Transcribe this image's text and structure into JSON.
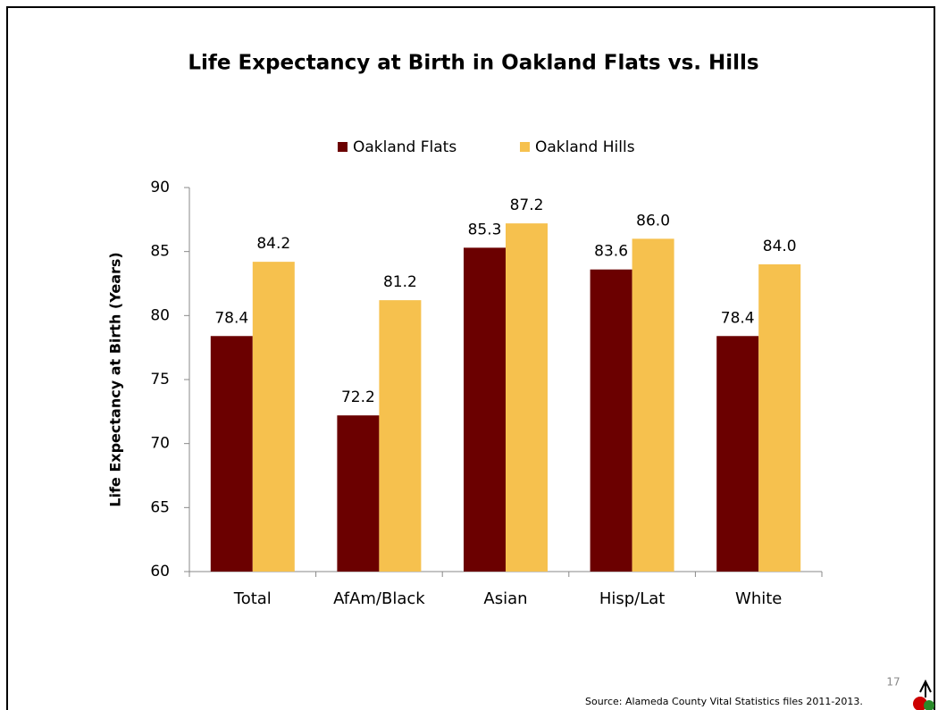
{
  "chart_data": {
    "type": "bar",
    "title": "Life Expectancy at Birth in Oakland Flats vs. Hills",
    "y_label": "Life Expectancy at Birth (Years)",
    "categories": [
      "Total",
      "AfAm/Black",
      "Asian",
      "Hisp/Lat",
      "White"
    ],
    "series": [
      {
        "name": "Oakland Flats",
        "color": "#6b0000",
        "values": [
          78.4,
          72.2,
          85.3,
          83.6,
          78.4
        ],
        "value_labels": [
          "78.4",
          "72.2",
          "85.3",
          "83.6",
          "78.4"
        ]
      },
      {
        "name": "Oakland Hills",
        "color": "#f6c14e",
        "values": [
          84.2,
          81.2,
          87.2,
          86,
          84
        ],
        "value_labels": [
          "84.2",
          "81.2",
          "87.2",
          "86.0",
          "84.0"
        ]
      }
    ],
    "ylim": [
      60,
      90
    ],
    "yticks": [
      60,
      65,
      70,
      75,
      80,
      85,
      90
    ],
    "legend": "top",
    "grid": false
  },
  "page_number": "17",
  "source": "Source:  Alameda County Vital Statistics files 2011-2013."
}
